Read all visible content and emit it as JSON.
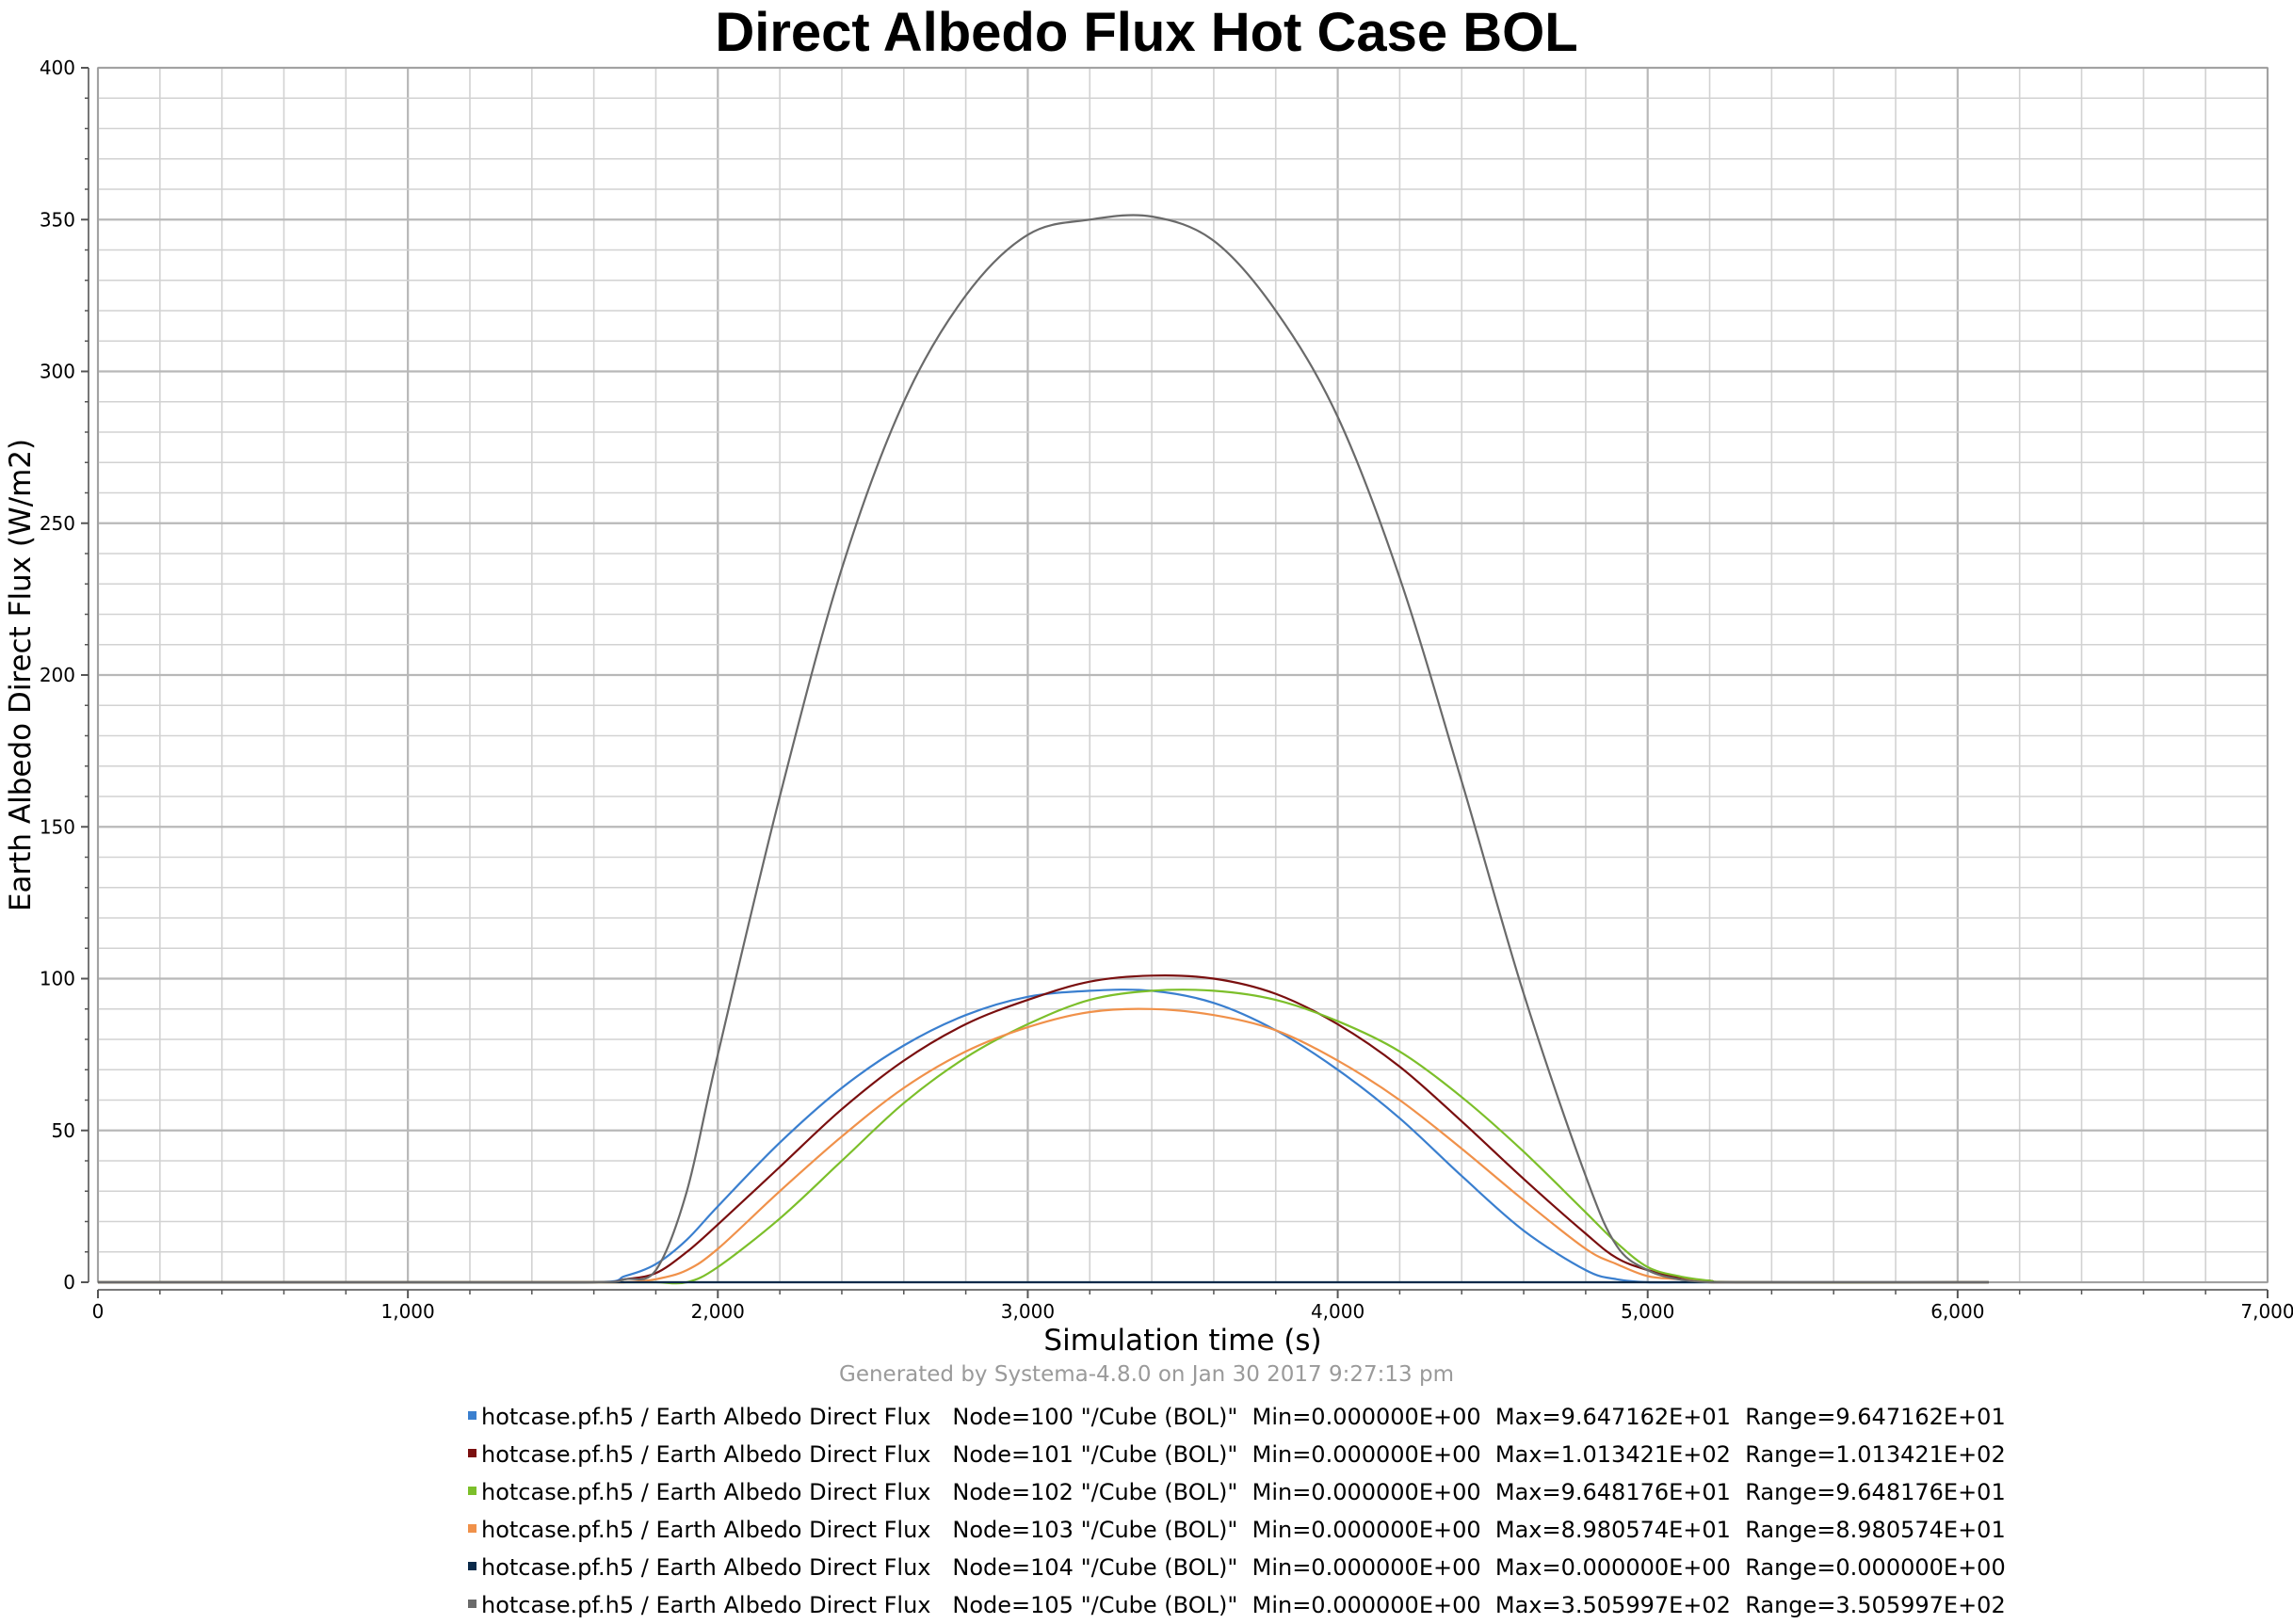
{
  "chart_data": {
    "type": "line",
    "title": "Direct Albedo Flux Hot Case BOL",
    "xlabel": "Simulation time (s)",
    "ylabel": "Earth Albedo Direct Flux (W/m2)",
    "xlim": [
      0,
      7000
    ],
    "ylim": [
      0,
      400
    ],
    "x_ticks": [
      "0",
      "1,000",
      "2,000",
      "3,000",
      "4,000",
      "5,000",
      "6,000",
      "7,000"
    ],
    "y_ticks": [
      "0",
      "50",
      "100",
      "150",
      "200",
      "250",
      "300",
      "350",
      "400"
    ],
    "grid": true,
    "legend_position": "bottom",
    "x": [
      0,
      1000,
      1600,
      1700,
      1800,
      1900,
      2000,
      2200,
      2400,
      2600,
      2800,
      3000,
      3200,
      3400,
      3600,
      3800,
      4000,
      4200,
      4400,
      4600,
      4800,
      4900,
      5000,
      5100,
      5200,
      5300,
      6000,
      6100
    ],
    "series": [
      {
        "name": "hotcase.pf.h5 / Earth Albedo Direct Flux   Node=100 \"/Cube (BOL)\"  Min=0.000000E+00  Max=9.647162E+01  Range=9.647162E+01",
        "color": "#3a7fcf",
        "values": [
          0,
          0,
          0,
          2,
          6,
          14,
          25,
          46,
          64,
          78,
          88,
          94,
          96,
          96,
          92,
          83,
          70,
          54,
          35,
          17,
          4,
          1,
          0,
          0,
          0,
          0,
          0,
          0
        ]
      },
      {
        "name": "hotcase.pf.h5 / Earth Albedo Direct Flux   Node=101 \"/Cube (BOL)\"  Min=0.000000E+00  Max=1.013421E+02  Range=1.013421E+02",
        "color": "#7a0f0f",
        "values": [
          0,
          0,
          0,
          1,
          3,
          10,
          19,
          38,
          57,
          73,
          85,
          93,
          99,
          101,
          100,
          95,
          85,
          71,
          53,
          34,
          16,
          8,
          4,
          1.5,
          0.5,
          0,
          0,
          0
        ]
      },
      {
        "name": "hotcase.pf.h5 / Earth Albedo Direct Flux   Node=102 \"/Cube (BOL)\"  Min=0.000000E+00  Max=9.648176E+01  Range=9.648176E+01",
        "color": "#7cbf2a",
        "values": [
          0,
          0,
          0,
          0,
          0,
          0,
          5,
          21,
          40,
          59,
          74,
          85,
          93,
          96,
          96,
          93,
          86,
          76,
          61,
          43,
          23,
          13,
          5,
          2,
          0.5,
          0,
          0,
          0
        ]
      },
      {
        "name": "hotcase.pf.h5 / Earth Albedo Direct Flux   Node=103 \"/Cube (BOL)\"  Min=0.000000E+00  Max=8.980574E+01  Range=8.980574E+01",
        "color": "#f0914a",
        "values": [
          0,
          0,
          0,
          0,
          1,
          4,
          11,
          30,
          48,
          64,
          76,
          84,
          89,
          90,
          88,
          83,
          73,
          60,
          44,
          27,
          11,
          6,
          2,
          1,
          0,
          0,
          0,
          0
        ]
      },
      {
        "name": "hotcase.pf.h5 / Earth Albedo Direct Flux   Node=104 \"/Cube (BOL)\"  Min=0.000000E+00  Max=0.000000E+00  Range=0.000000E+00",
        "color": "#0b2a4a",
        "values": [
          0,
          0,
          0,
          0,
          0,
          0,
          0,
          0,
          0,
          0,
          0,
          0,
          0,
          0,
          0,
          0,
          0,
          0,
          0,
          0,
          0,
          0,
          0,
          0,
          0,
          0,
          0,
          0
        ]
      },
      {
        "name": "hotcase.pf.h5 / Earth Albedo Direct Flux   Node=105 \"/Cube (BOL)\"  Min=0.000000E+00  Max=3.505997E+02  Range=3.505997E+02",
        "color": "#6a6a6a",
        "values": [
          0,
          0,
          0,
          1,
          4,
          30,
          75,
          160,
          235,
          290,
          325,
          345,
          350,
          351,
          343,
          320,
          285,
          232,
          165,
          95,
          35,
          12,
          4,
          1,
          0,
          0,
          0,
          0
        ]
      }
    ]
  },
  "footer": "Generated by Systema-4.8.0 on Jan 30 2017 9:27:13 pm"
}
